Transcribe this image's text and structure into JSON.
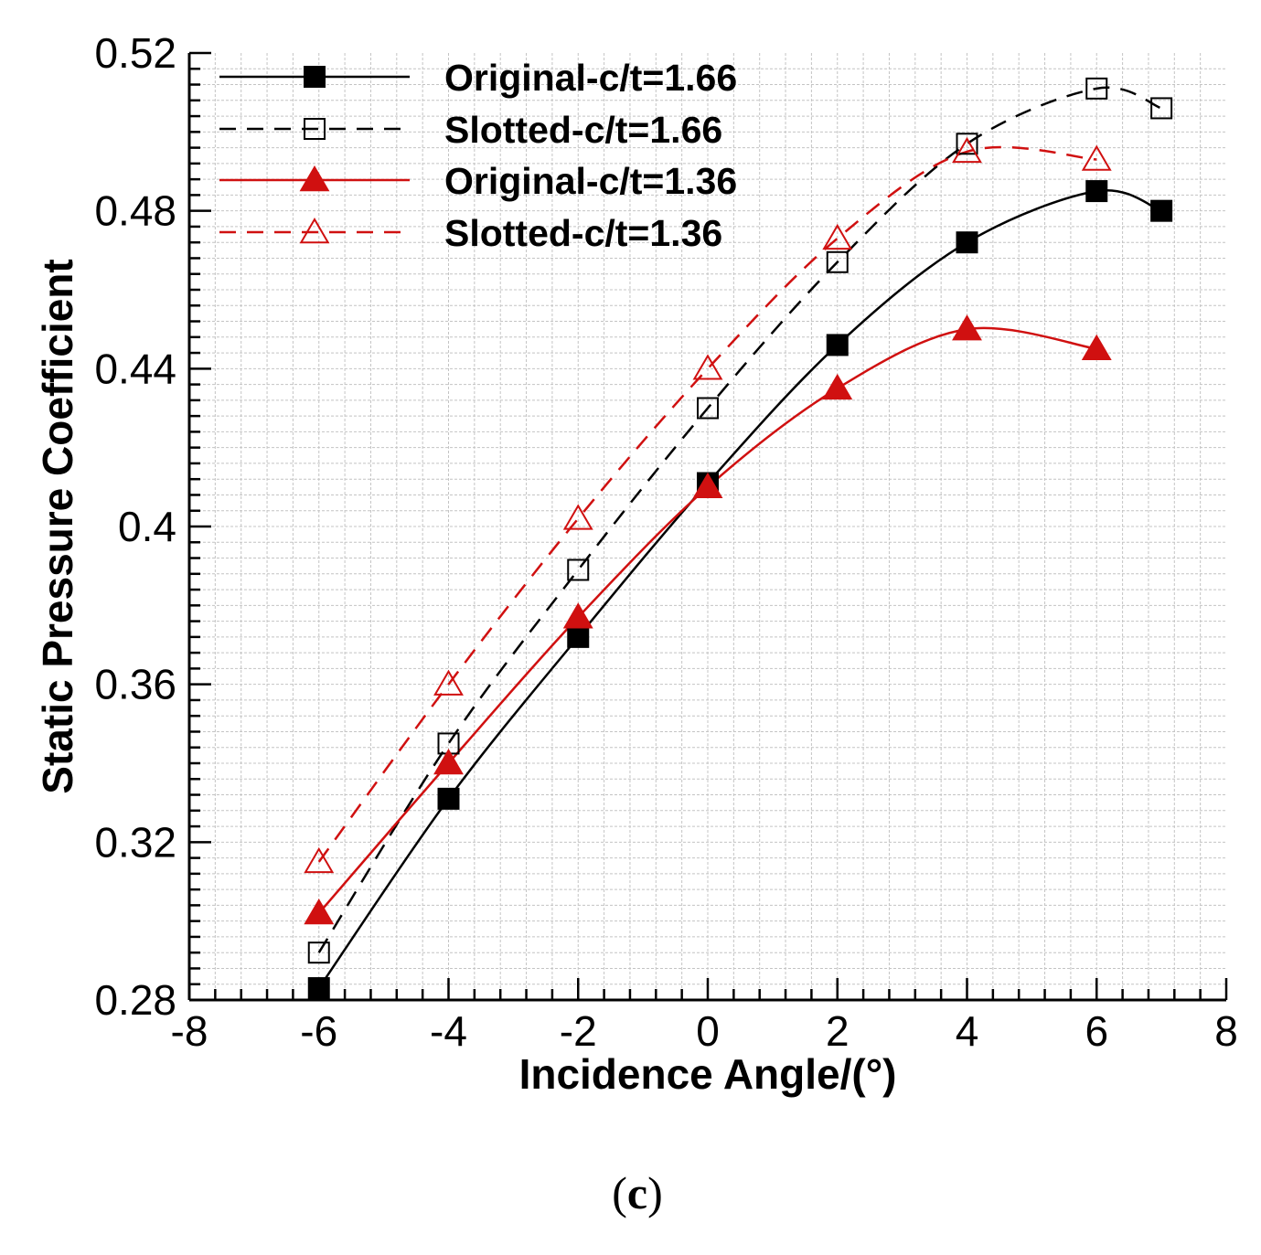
{
  "caption": {
    "open": "(",
    "letter": "c",
    "close": ")"
  },
  "chart_data": {
    "type": "line",
    "xlabel": "Incidence Angle/(°)",
    "ylabel": "Static Pressure Coefficient",
    "xlim": [
      -8,
      8
    ],
    "ylim": [
      0.28,
      0.52
    ],
    "xticks": [
      -8,
      -6,
      -4,
      -2,
      0,
      2,
      4,
      6,
      8
    ],
    "xtick_labels": [
      "-8",
      "-6",
      "-4",
      "-2",
      "0",
      "2",
      "4",
      "6",
      "8"
    ],
    "yticks": [
      0.28,
      0.32,
      0.36,
      0.4,
      0.44,
      0.48,
      0.52
    ],
    "ytick_labels": [
      "0.28",
      "0.32",
      "0.36",
      "0.4",
      "0.44",
      "0.48",
      "0.52"
    ],
    "grid": true,
    "legend_position": "top-left",
    "series": [
      {
        "name": "Original-c/t=1.66",
        "color": "#000000",
        "dash": "solid",
        "marker": "square-filled",
        "x": [
          -6,
          -4,
          -2,
          0,
          2,
          4,
          6,
          7
        ],
        "y": [
          0.283,
          0.331,
          0.372,
          0.411,
          0.446,
          0.472,
          0.485,
          0.48
        ]
      },
      {
        "name": "Slotted-c/t=1.66",
        "color": "#000000",
        "dash": "dashed",
        "marker": "square-open",
        "x": [
          -6,
          -4,
          -2,
          0,
          2,
          4,
          6,
          7
        ],
        "y": [
          0.292,
          0.345,
          0.389,
          0.43,
          0.467,
          0.497,
          0.511,
          0.506
        ]
      },
      {
        "name": "Original-c/t=1.36",
        "color": "#d01010",
        "dash": "solid",
        "marker": "triangle-filled",
        "x": [
          -6,
          -4,
          -2,
          0,
          2,
          4,
          6
        ],
        "y": [
          0.302,
          0.34,
          0.377,
          0.41,
          0.435,
          0.45,
          0.445
        ]
      },
      {
        "name": "Slotted-c/t=1.36",
        "color": "#d01010",
        "dash": "dashed",
        "marker": "triangle-open",
        "x": [
          -6,
          -4,
          -2,
          0,
          2,
          4,
          6
        ],
        "y": [
          0.315,
          0.36,
          0.402,
          0.44,
          0.473,
          0.495,
          0.493
        ]
      }
    ]
  }
}
